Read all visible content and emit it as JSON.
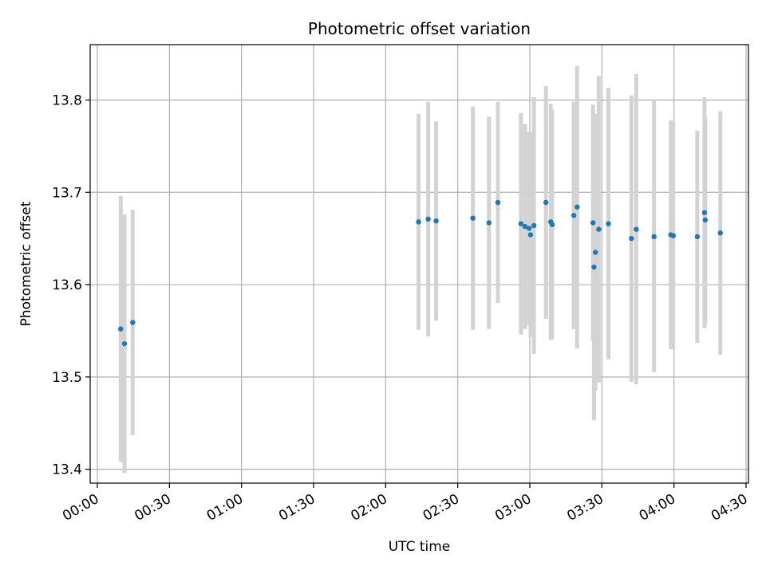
{
  "chart_data": {
    "type": "scatter",
    "title": "Photometric offset variation",
    "xlabel": "UTC time",
    "ylabel": "Photometric offset",
    "xlim_minutes": [
      -3,
      271
    ],
    "ylim": [
      13.385,
      13.86
    ],
    "grid": true,
    "x_ticks": [
      {
        "minutes": 0,
        "label": "00:00"
      },
      {
        "minutes": 30,
        "label": "00:30"
      },
      {
        "minutes": 60,
        "label": "01:00"
      },
      {
        "minutes": 90,
        "label": "01:30"
      },
      {
        "minutes": 120,
        "label": "02:00"
      },
      {
        "minutes": 150,
        "label": "02:30"
      },
      {
        "minutes": 180,
        "label": "03:00"
      },
      {
        "minutes": 210,
        "label": "03:30"
      },
      {
        "minutes": 240,
        "label": "04:00"
      },
      {
        "minutes": 270,
        "label": "04:30"
      }
    ],
    "y_ticks": [
      {
        "value": 13.4,
        "label": "13.4"
      },
      {
        "value": 13.5,
        "label": "13.5"
      },
      {
        "value": 13.6,
        "label": "13.6"
      },
      {
        "value": 13.7,
        "label": "13.7"
      },
      {
        "value": 13.8,
        "label": "13.8"
      }
    ],
    "point_color": "#1f77b4",
    "errorbar_color": "#d3d3d3",
    "points": [
      {
        "x": 9.7,
        "y": 13.552,
        "err": 0.144
      },
      {
        "x": 11.3,
        "y": 13.536,
        "err": 0.14
      },
      {
        "x": 14.7,
        "y": 13.559,
        "err": 0.122
      },
      {
        "x": 133.7,
        "y": 13.668,
        "err": 0.117
      },
      {
        "x": 137.7,
        "y": 13.671,
        "err": 0.127
      },
      {
        "x": 141.0,
        "y": 13.669,
        "err": 0.108
      },
      {
        "x": 156.3,
        "y": 13.672,
        "err": 0.121
      },
      {
        "x": 163.0,
        "y": 13.667,
        "err": 0.115
      },
      {
        "x": 166.7,
        "y": 13.689,
        "err": 0.109
      },
      {
        "x": 176.3,
        "y": 13.666,
        "err": 0.12
      },
      {
        "x": 178.0,
        "y": 13.663,
        "err": 0.111
      },
      {
        "x": 179.7,
        "y": 13.661,
        "err": 0.105
      },
      {
        "x": 180.3,
        "y": 13.654,
        "err": 0.111
      },
      {
        "x": 181.7,
        "y": 13.664,
        "err": 0.139
      },
      {
        "x": 186.7,
        "y": 13.689,
        "err": 0.126
      },
      {
        "x": 188.7,
        "y": 13.668,
        "err": 0.128
      },
      {
        "x": 189.3,
        "y": 13.665,
        "err": 0.124
      },
      {
        "x": 198.3,
        "y": 13.675,
        "err": 0.123
      },
      {
        "x": 199.7,
        "y": 13.684,
        "err": 0.153
      },
      {
        "x": 206.3,
        "y": 13.667,
        "err": 0.128
      },
      {
        "x": 206.7,
        "y": 13.619,
        "err": 0.166
      },
      {
        "x": 207.3,
        "y": 13.635,
        "err": 0.15
      },
      {
        "x": 208.7,
        "y": 13.66,
        "err": 0.166
      },
      {
        "x": 212.7,
        "y": 13.666,
        "err": 0.147
      },
      {
        "x": 222.3,
        "y": 13.65,
        "err": 0.155
      },
      {
        "x": 224.3,
        "y": 13.66,
        "err": 0.168
      },
      {
        "x": 231.7,
        "y": 13.652,
        "err": 0.147
      },
      {
        "x": 238.7,
        "y": 13.654,
        "err": 0.124
      },
      {
        "x": 239.7,
        "y": 13.653,
        "err": 0.122
      },
      {
        "x": 249.7,
        "y": 13.652,
        "err": 0.115
      },
      {
        "x": 252.7,
        "y": 13.678,
        "err": 0.125
      },
      {
        "x": 253.0,
        "y": 13.67,
        "err": 0.112
      },
      {
        "x": 259.3,
        "y": 13.656,
        "err": 0.132
      }
    ]
  }
}
